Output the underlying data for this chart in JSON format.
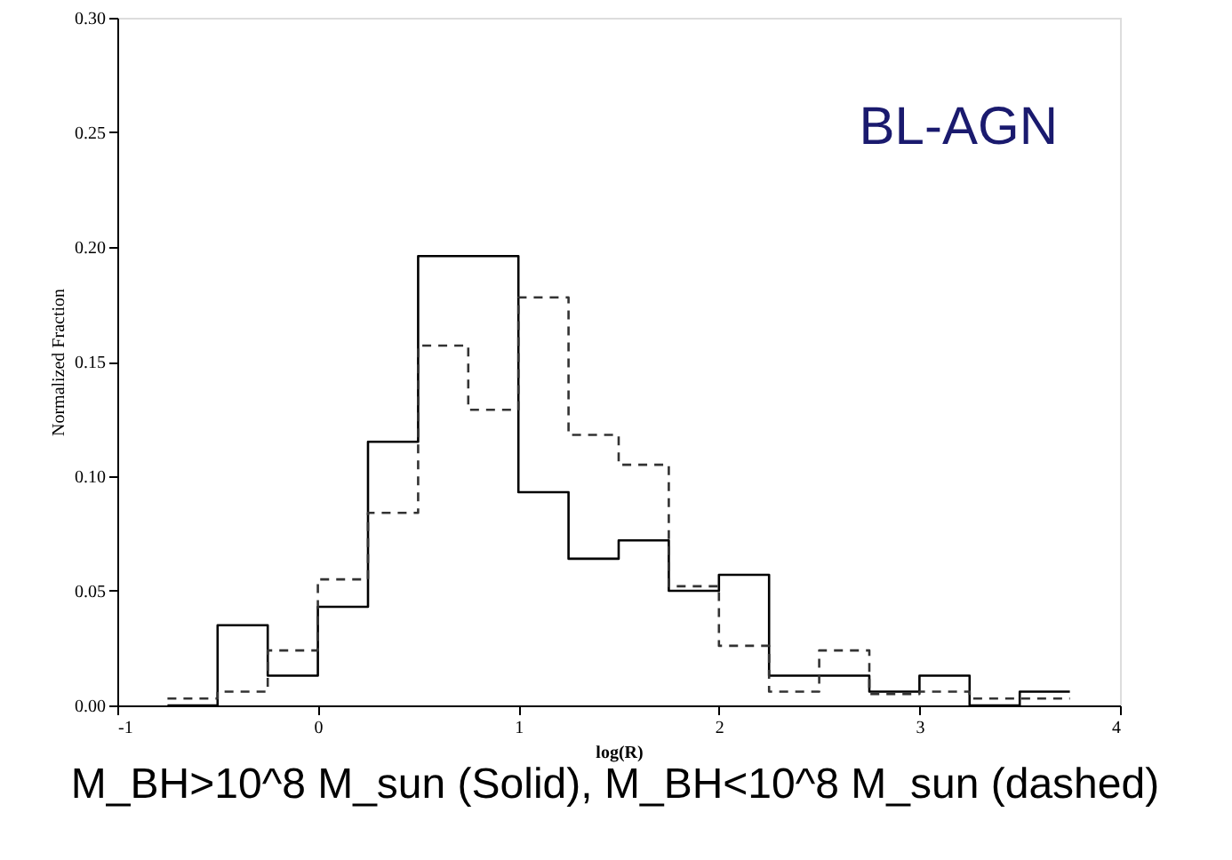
{
  "chart_data": {
    "type": "histogram",
    "xlabel": "log(R)",
    "ylabel": "Normalized Fraction",
    "bins": [
      -0.75,
      -0.5,
      -0.25,
      0,
      0.25,
      0.5,
      0.75,
      1.0,
      1.25,
      1.5,
      1.75,
      2.0,
      2.25,
      2.5,
      2.75,
      3.0,
      3.25,
      3.5,
      3.75
    ],
    "series": [
      {
        "color": "#000000",
        "line_style": "solid",
        "values": [
          0,
          0.035,
          0.013,
          0.043,
          0.115,
          0.196,
          0.196,
          0.093,
          0.064,
          0.072,
          0.05,
          0.057,
          0.013,
          0.013,
          0.006,
          0.013,
          0,
          0.006
        ]
      },
      {
        "color": "#333333",
        "line_style": "dashed",
        "values": [
          0.003,
          0.006,
          0.024,
          0.055,
          0.084,
          0.157,
          0.129,
          0.178,
          0.118,
          0.105,
          0.052,
          0.026,
          0.006,
          0.024,
          0.005,
          0.006,
          0.003,
          0.003
        ]
      }
    ],
    "xlim": [
      -1,
      4
    ],
    "xticks": [
      -1,
      0,
      1,
      2,
      3,
      4
    ],
    "ylim": [
      0,
      0.3
    ],
    "yticks": [
      {
        "value": 0,
        "label": "0.00"
      },
      {
        "value": 0.05,
        "label": "0.05"
      },
      {
        "value": 0.1,
        "label": "0.10"
      },
      {
        "value": 0.15,
        "label": "0.15"
      },
      {
        "value": 0.2,
        "label": "0.20"
      },
      {
        "value": 0.25,
        "label": "0.25"
      },
      {
        "value": 0.3,
        "label": "0.30"
      }
    ],
    "grid": false,
    "annotations": [
      "BL-AGN",
      "M_BH>10^8 M_sun (Solid), M_BH<10^8 M_sun (dashed)"
    ]
  }
}
